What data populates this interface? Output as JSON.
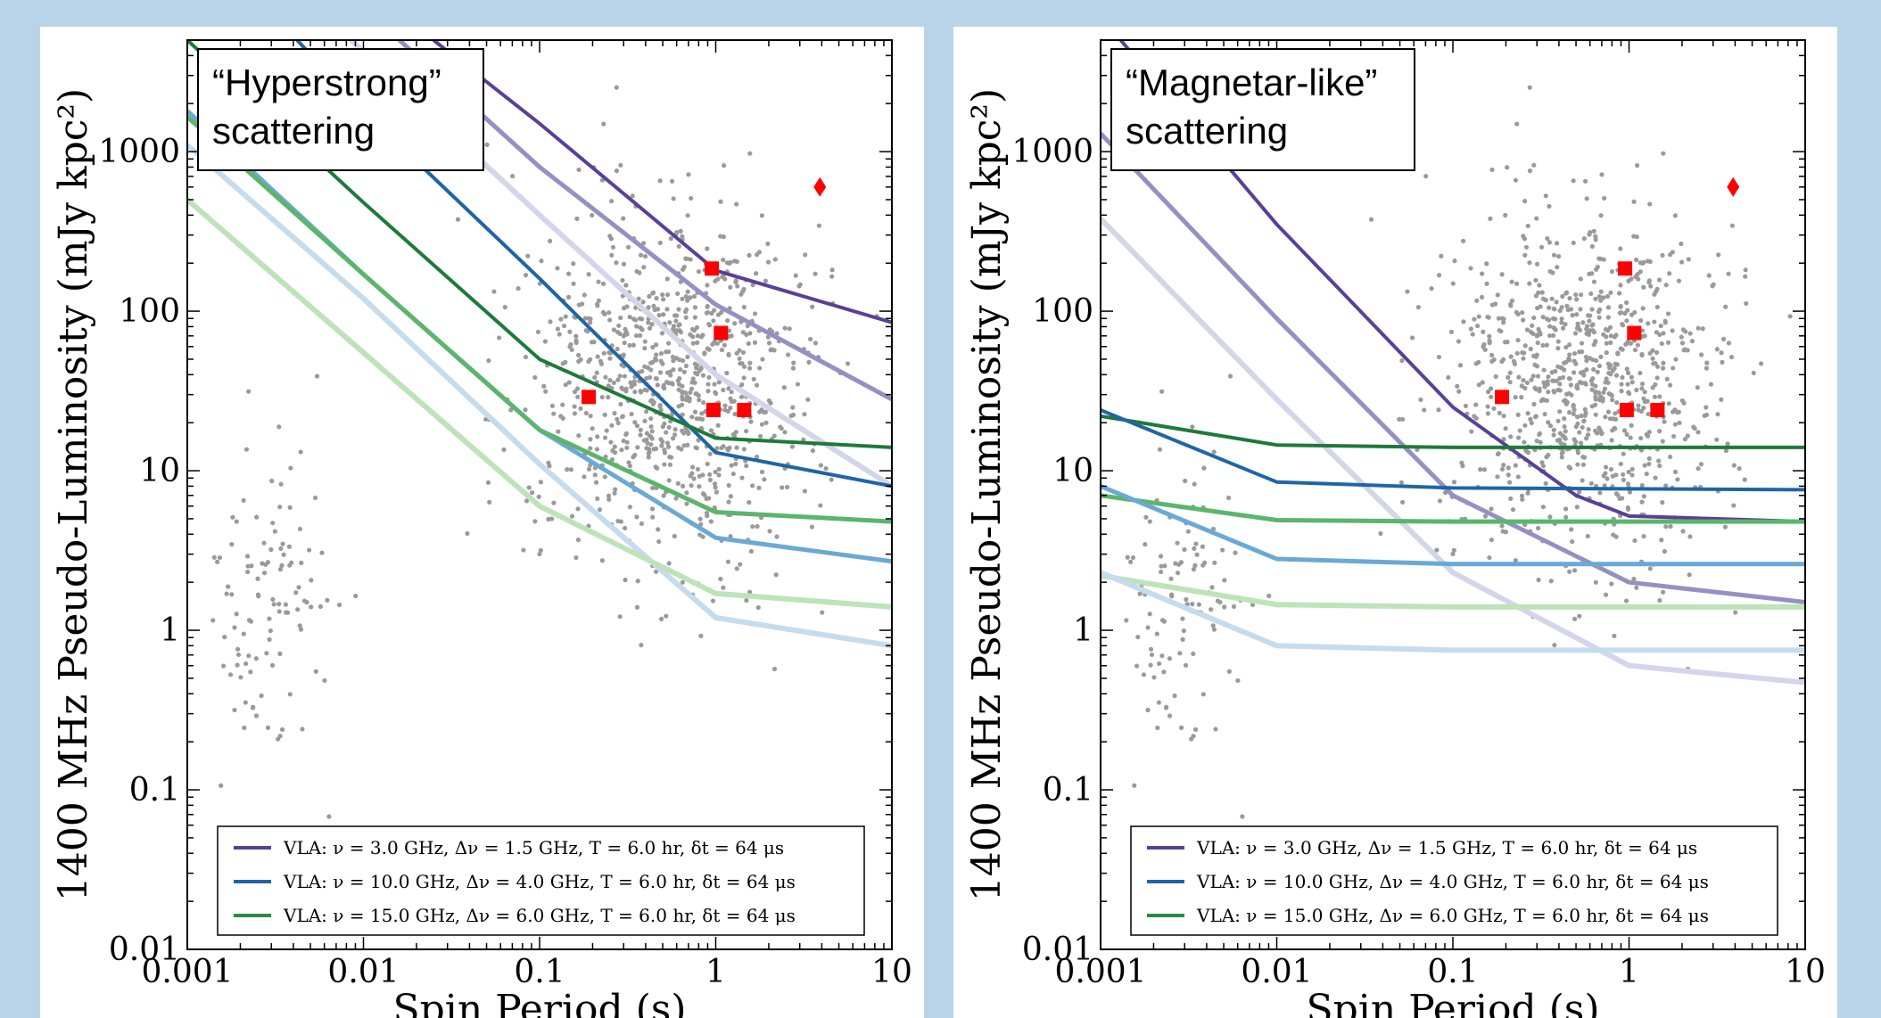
{
  "chart_data": [
    {
      "type": "scatter",
      "title": "",
      "annotation_box": [
        "“Hyperstrong”",
        "scattering"
      ],
      "xlabel": "Spin Period (s)",
      "ylabel": "1400 MHz Pseudo-Luminosity (mJy kpc²)",
      "xscale": "log",
      "yscale": "log",
      "xlim": [
        0.001,
        10
      ],
      "ylim": [
        0.01,
        5000
      ],
      "xticks": [
        0.001,
        0.01,
        0.1,
        1,
        10
      ],
      "xtick_labels": [
        "0.001",
        "0.01",
        "0.1",
        "1",
        "10"
      ],
      "yticks": [
        0.01,
        0.1,
        1,
        10,
        100,
        1000
      ],
      "ytick_labels": [
        "0.01",
        "0.1",
        "1",
        "10",
        "100",
        "1000"
      ],
      "grid": false,
      "legend_placement": "bottom",
      "legend": [
        {
          "label": "VLA: ν = 3.0 GHz, Δν = 1.5 GHz, T = 6.0 hr, δt = 64 μs",
          "color": "#5b3f96"
        },
        {
          "label": "VLA: ν = 10.0 GHz, Δν = 4.0 GHz, T = 6.0 hr, δt = 64 μs",
          "color": "#1f65a6"
        },
        {
          "label": "VLA: ν = 15.0 GHz, Δν = 6.0 GHz, T = 6.0 hr, δt = 64 μs",
          "color": "#2b8a43"
        }
      ],
      "curves": [
        {
          "color": "#5b3f96",
          "width": 4,
          "points": [
            [
              0.025,
              5000
            ],
            [
              0.1,
              1500
            ],
            [
              1,
              180
            ],
            [
              10,
              85
            ]
          ]
        },
        {
          "color": "#9391c4",
          "width": 5,
          "points": [
            [
              0.016,
              5000
            ],
            [
              0.1,
              800
            ],
            [
              1,
              110
            ],
            [
              10,
              28
            ]
          ]
        },
        {
          "color": "#d3d6eb",
          "width": 6,
          "points": [
            [
              0.0085,
              5000
            ],
            [
              0.1,
              400
            ],
            [
              1,
              40
            ],
            [
              10,
              8
            ]
          ]
        },
        {
          "color": "#1f65a6",
          "width": 4,
          "points": [
            [
              0.0042,
              5000
            ],
            [
              0.01,
              1800
            ],
            [
              0.1,
              160
            ],
            [
              1,
              13
            ],
            [
              10,
              8
            ]
          ]
        },
        {
          "color": "#6aa9d6",
          "width": 5,
          "points": [
            [
              0.001,
              1800
            ],
            [
              0.01,
              170
            ],
            [
              0.1,
              18
            ],
            [
              1,
              3.8
            ],
            [
              10,
              2.7
            ]
          ]
        },
        {
          "color": "#c5dbee",
          "width": 6,
          "points": [
            [
              0.001,
              1100
            ],
            [
              0.01,
              120
            ],
            [
              0.1,
              11
            ],
            [
              1,
              1.2
            ],
            [
              10,
              0.8
            ]
          ]
        },
        {
          "color": "#1d7a3a",
          "width": 4,
          "points": [
            [
              0.001,
              5000
            ],
            [
              0.01,
              480
            ],
            [
              0.1,
              50
            ],
            [
              1,
              16
            ],
            [
              10,
              14
            ]
          ]
        },
        {
          "color": "#5bb56b",
          "width": 5,
          "points": [
            [
              0.001,
              1650
            ],
            [
              0.01,
              170
            ],
            [
              0.1,
              18
            ],
            [
              1,
              5.5
            ],
            [
              10,
              4.8
            ]
          ]
        },
        {
          "color": "#bde3b8",
          "width": 6,
          "points": [
            [
              0.001,
              500
            ],
            [
              0.01,
              55
            ],
            [
              0.1,
              6
            ],
            [
              1,
              1.7
            ],
            [
              10,
              1.4
            ]
          ]
        }
      ],
      "red_squares": [
        [
          0.95,
          185
        ],
        [
          1.07,
          73
        ],
        [
          0.19,
          29
        ],
        [
          0.97,
          24
        ],
        [
          1.45,
          24
        ]
      ],
      "red_diamond": [
        [
          3.9,
          600
        ]
      ]
    },
    {
      "type": "scatter",
      "title": "",
      "annotation_box": [
        "“Magnetar-like”",
        "scattering"
      ],
      "xlabel": "Spin Period (s)",
      "ylabel": "1400 MHz Pseudo-Luminosity (mJy kpc²)",
      "xscale": "log",
      "yscale": "log",
      "xlim": [
        0.001,
        10
      ],
      "ylim": [
        0.01,
        5000
      ],
      "xticks": [
        0.001,
        0.01,
        0.1,
        1,
        10
      ],
      "xtick_labels": [
        "0.001",
        "0.01",
        "0.1",
        "1",
        "10"
      ],
      "yticks": [
        0.01,
        0.1,
        1,
        10,
        100,
        1000
      ],
      "ytick_labels": [
        "0.01",
        "0.1",
        "1",
        "10",
        "100",
        "1000"
      ],
      "grid": false,
      "legend_placement": "bottom",
      "legend": [
        {
          "label": "VLA: ν = 3.0 GHz, Δν = 1.5 GHz, T = 6.0 hr, δt = 64 μs",
          "color": "#5b3f96"
        },
        {
          "label": "VLA: ν = 10.0 GHz, Δν = 4.0 GHz, T = 6.0 hr, δt = 64 μs",
          "color": "#1f65a6"
        },
        {
          "label": "VLA: ν = 15.0 GHz, Δν = 6.0 GHz, T = 6.0 hr, δt = 64 μs",
          "color": "#2b8a43"
        }
      ],
      "curves": [
        {
          "color": "#5b3f96",
          "width": 4,
          "points": [
            [
              0.0013,
              5000
            ],
            [
              0.01,
              350
            ],
            [
              0.1,
              25
            ],
            [
              0.5,
              7
            ],
            [
              1,
              5.2
            ],
            [
              10,
              4.8
            ]
          ]
        },
        {
          "color": "#9391c4",
          "width": 5,
          "points": [
            [
              0.001,
              1300
            ],
            [
              0.01,
              90
            ],
            [
              0.1,
              7
            ],
            [
              1,
              2
            ],
            [
              10,
              1.5
            ]
          ]
        },
        {
          "color": "#d3d6eb",
          "width": 6,
          "points": [
            [
              0.001,
              380
            ],
            [
              0.01,
              28
            ],
            [
              0.1,
              2.3
            ],
            [
              1,
              0.6
            ],
            [
              10,
              0.47
            ]
          ]
        },
        {
          "color": "#1d7a3a",
          "width": 4,
          "points": [
            [
              0.001,
              22
            ],
            [
              0.01,
              14.5
            ],
            [
              0.1,
              14
            ],
            [
              10,
              14
            ]
          ]
        },
        {
          "color": "#1f65a6",
          "width": 4,
          "points": [
            [
              0.001,
              24
            ],
            [
              0.01,
              8.5
            ],
            [
              0.1,
              7.8
            ],
            [
              10,
              7.6
            ]
          ]
        },
        {
          "color": "#5bb56b",
          "width": 5,
          "points": [
            [
              0.001,
              7
            ],
            [
              0.01,
              4.9
            ],
            [
              0.1,
              4.8
            ],
            [
              10,
              4.8
            ]
          ]
        },
        {
          "color": "#6aa9d6",
          "width": 5,
          "points": [
            [
              0.001,
              8
            ],
            [
              0.01,
              2.8
            ],
            [
              0.1,
              2.6
            ],
            [
              10,
              2.6
            ]
          ]
        },
        {
          "color": "#bde3b8",
          "width": 6,
          "points": [
            [
              0.001,
              2.2
            ],
            [
              0.01,
              1.45
            ],
            [
              0.1,
              1.4
            ],
            [
              10,
              1.4
            ]
          ]
        },
        {
          "color": "#c5dbee",
          "width": 6,
          "points": [
            [
              0.001,
              2.3
            ],
            [
              0.01,
              0.8
            ],
            [
              0.1,
              0.75
            ],
            [
              10,
              0.75
            ]
          ]
        }
      ],
      "red_squares": [
        [
          0.95,
          185
        ],
        [
          1.07,
          73
        ],
        [
          0.19,
          29
        ],
        [
          0.97,
          24
        ],
        [
          1.45,
          24
        ]
      ],
      "red_diamond": [
        [
          3.9,
          600
        ]
      ]
    }
  ]
}
